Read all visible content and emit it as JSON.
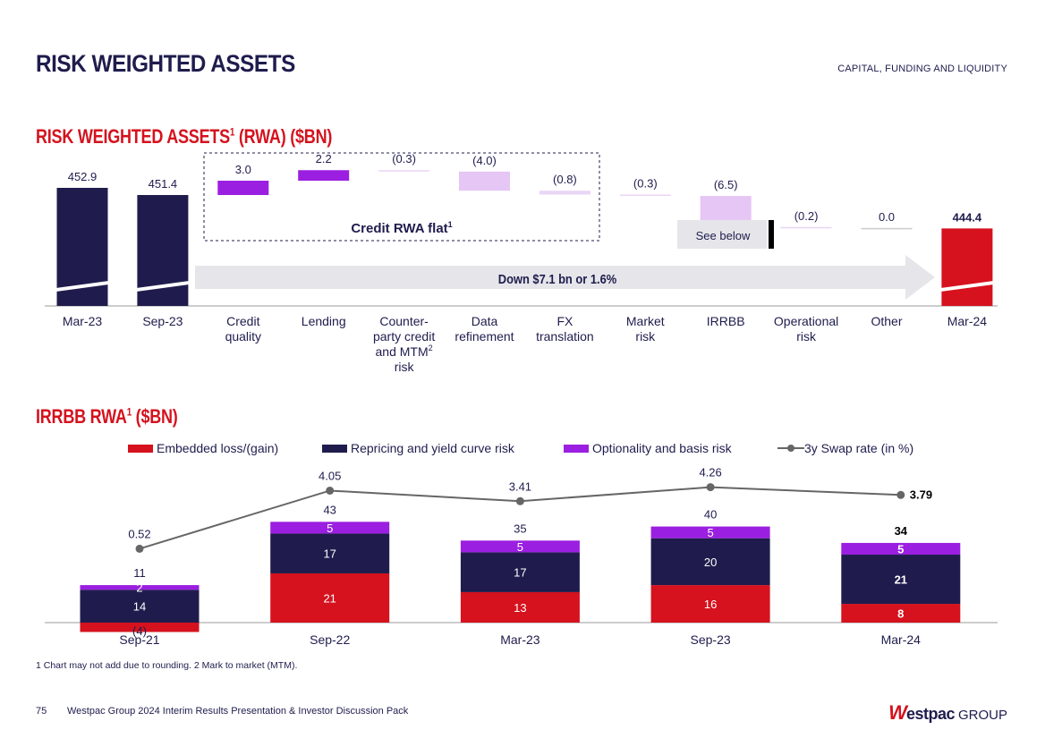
{
  "header": {
    "title": "RISK WEIGHTED ASSETS",
    "section": "CAPITAL, FUNDING AND LIQUIDITY"
  },
  "colors": {
    "navy": "#1f1c4d",
    "red": "#d5121e",
    "purple": "#9b1fe0",
    "lilac": "#e5c6f5",
    "grey": "#e6e6ea",
    "line": "#666666"
  },
  "chart_data": [
    {
      "type": "bar",
      "title": "RISK WEIGHTED ASSETS",
      "title_sup": "1",
      "title_suffix": " (RWA) ($BN)",
      "subtype": "waterfall",
      "categories": [
        "Mar-23",
        "Sep-23",
        "Credit quality",
        "Lending",
        "Counter-party credit and MTM risk",
        "Data refinement",
        "FX translation",
        "Market risk",
        "IRRBB",
        "Operational risk",
        "Other",
        "Mar-24"
      ],
      "category_lines": [
        [
          "Mar-23"
        ],
        [
          "Sep-23"
        ],
        [
          "Credit",
          "quality"
        ],
        [
          "Lending"
        ],
        [
          "Counter-",
          "party credit",
          "and MTM",
          "risk"
        ],
        [
          "Data",
          "refinement"
        ],
        [
          "FX",
          "translation"
        ],
        [
          "Market",
          "risk"
        ],
        [
          "IRRBB"
        ],
        [
          "Operational",
          "risk"
        ],
        [
          "Other"
        ],
        [
          "Mar-24"
        ]
      ],
      "counterparty_sup": "2",
      "values": [
        452.9,
        451.4,
        3.0,
        2.2,
        -0.3,
        -4.0,
        -0.8,
        -0.3,
        -6.5,
        -0.2,
        0.0,
        444.4
      ],
      "value_labels": [
        "452.9",
        "451.4",
        "3.0",
        "2.2",
        "(0.3)",
        "(4.0)",
        "(0.8)",
        "(0.3)",
        "(6.5)",
        "(0.2)",
        "0.0",
        "444.4"
      ],
      "kinds": [
        "total",
        "total",
        "increase",
        "increase",
        "decrease",
        "decrease",
        "decrease",
        "decrease",
        "decrease",
        "decrease",
        "decrease",
        "total"
      ],
      "annotations": {
        "credit_box": "Credit RWA flat",
        "credit_box_sup": "1",
        "see_below": "See below",
        "arrow": "Down $7.1 bn or 1.6%"
      }
    },
    {
      "type": "bar",
      "subtype": "stacked-with-line",
      "title": "IRRBB RWA",
      "title_sup": "1",
      "title_suffix": " ($BN)",
      "categories": [
        "Sep-21",
        "Sep-22",
        "Mar-23",
        "Sep-23",
        "Mar-24"
      ],
      "series": [
        {
          "name": "Embedded loss/(gain)",
          "values": [
            -4,
            21,
            13,
            16,
            8
          ],
          "labels": [
            "(4)",
            "21",
            "13",
            "16",
            "8"
          ]
        },
        {
          "name": "Repricing and yield curve risk",
          "values": [
            14,
            17,
            17,
            20,
            21
          ],
          "labels": [
            "14",
            "17",
            "17",
            "20",
            "21"
          ]
        },
        {
          "name": "Optionality and basis risk",
          "values": [
            2,
            5,
            5,
            5,
            5
          ],
          "labels": [
            "2",
            "5",
            "5",
            "5",
            "5"
          ]
        }
      ],
      "totals": [
        "11",
        "43",
        "35",
        "40",
        "34"
      ],
      "line": {
        "name": "3y Swap rate (in %)",
        "values": [
          0.52,
          4.05,
          3.41,
          4.26,
          3.79
        ],
        "labels": [
          "0.52",
          "4.05",
          "3.41",
          "4.26",
          "3.79"
        ]
      }
    }
  ],
  "footnote": "1 Chart may not add due to rounding. 2 Mark to market (MTM).",
  "footer": {
    "page_number": "75",
    "text": "Westpac Group 2024 Interim Results Presentation & Investor Discussion Pack",
    "logo_mark": "W",
    "logo_word": "estpac",
    "logo_group": "GROUP"
  }
}
